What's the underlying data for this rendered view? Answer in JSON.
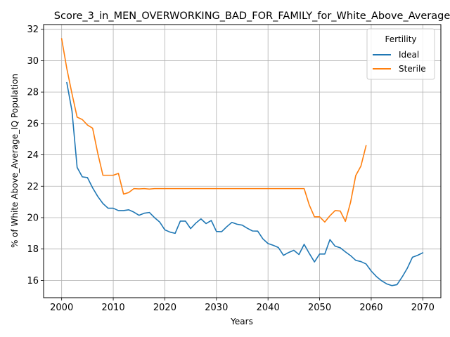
{
  "chart_data": {
    "type": "line",
    "title": "Score_3_in_MEN_OVERWORKING_BAD_FOR_FAMILY_for_White_Above_Average_IQ",
    "xlabel": "Years",
    "ylabel": "% of White Above_Average_IQ Population",
    "xlim": [
      1996.5,
      2073.5
    ],
    "ylim": [
      14.9,
      32.3
    ],
    "x_ticks": [
      2000,
      2010,
      2020,
      2030,
      2040,
      2050,
      2060,
      2070
    ],
    "y_ticks": [
      16,
      18,
      20,
      22,
      24,
      26,
      28,
      30,
      32
    ],
    "grid": true,
    "legend": {
      "title": "Fertility",
      "placement": "top-right"
    },
    "series": [
      {
        "name": "Ideal",
        "color": "#1f77b4",
        "x": [
          2001,
          2002,
          2003,
          2004,
          2005,
          2006,
          2007,
          2008,
          2009,
          2010,
          2011,
          2012,
          2013,
          2014,
          2015,
          2016,
          2017,
          2018,
          2019,
          2020,
          2021,
          2022,
          2023,
          2024,
          2025,
          2026,
          2027,
          2028,
          2029,
          2030,
          2031,
          2032,
          2033,
          2034,
          2035,
          2036,
          2037,
          2038,
          2039,
          2040,
          2041,
          2042,
          2043,
          2044,
          2045,
          2046,
          2047,
          2048,
          2049,
          2050,
          2051,
          2052,
          2053,
          2054,
          2055,
          2056,
          2057,
          2058,
          2059,
          2060,
          2061,
          2062,
          2063,
          2064,
          2065,
          2066,
          2067,
          2068,
          2069,
          2070
        ],
        "y": [
          28.6,
          26.8,
          23.2,
          22.6,
          22.55,
          21.9,
          21.35,
          20.9,
          20.6,
          20.6,
          20.45,
          20.45,
          20.5,
          20.35,
          20.15,
          20.28,
          20.33,
          20.0,
          19.72,
          19.22,
          19.08,
          19.0,
          19.78,
          19.78,
          19.3,
          19.65,
          19.92,
          19.62,
          19.82,
          19.12,
          19.1,
          19.42,
          19.7,
          19.58,
          19.52,
          19.32,
          19.15,
          19.14,
          18.65,
          18.35,
          18.24,
          18.1,
          17.6,
          17.78,
          17.92,
          17.65,
          18.3,
          17.72,
          17.18,
          17.68,
          17.68,
          18.6,
          18.18,
          18.08,
          17.82,
          17.58,
          17.28,
          17.2,
          17.05,
          16.6,
          16.25,
          15.98,
          15.78,
          15.67,
          15.73,
          16.22,
          16.78,
          17.48,
          17.6,
          17.76
        ]
      },
      {
        "name": "Sterile",
        "color": "#ff7f0e",
        "x": [
          2000,
          2001,
          2002,
          2003,
          2004,
          2005,
          2006,
          2007,
          2008,
          2009,
          2010,
          2011,
          2012,
          2013,
          2014,
          2015,
          2016,
          2017,
          2018,
          2019,
          2020,
          2021,
          2022,
          2023,
          2024,
          2025,
          2026,
          2027,
          2028,
          2029,
          2030,
          2031,
          2032,
          2033,
          2034,
          2035,
          2036,
          2037,
          2038,
          2039,
          2040,
          2041,
          2042,
          2043,
          2044,
          2045,
          2046,
          2047,
          2048,
          2049,
          2050,
          2051,
          2052,
          2053,
          2054,
          2055,
          2056,
          2057,
          2058,
          2059
        ],
        "y": [
          31.4,
          29.5,
          27.9,
          26.4,
          26.25,
          25.9,
          25.7,
          24.1,
          22.7,
          22.7,
          22.7,
          22.82,
          21.5,
          21.6,
          21.85,
          21.83,
          21.85,
          21.82,
          21.85,
          21.85,
          21.85,
          21.85,
          21.85,
          21.85,
          21.85,
          21.85,
          21.85,
          21.85,
          21.85,
          21.85,
          21.85,
          21.85,
          21.85,
          21.85,
          21.85,
          21.85,
          21.85,
          21.85,
          21.85,
          21.85,
          21.85,
          21.85,
          21.85,
          21.85,
          21.85,
          21.85,
          21.85,
          21.85,
          20.8,
          20.05,
          20.05,
          19.72,
          20.12,
          20.45,
          20.42,
          19.76,
          20.98,
          22.68,
          23.28,
          24.58
        ]
      }
    ]
  }
}
